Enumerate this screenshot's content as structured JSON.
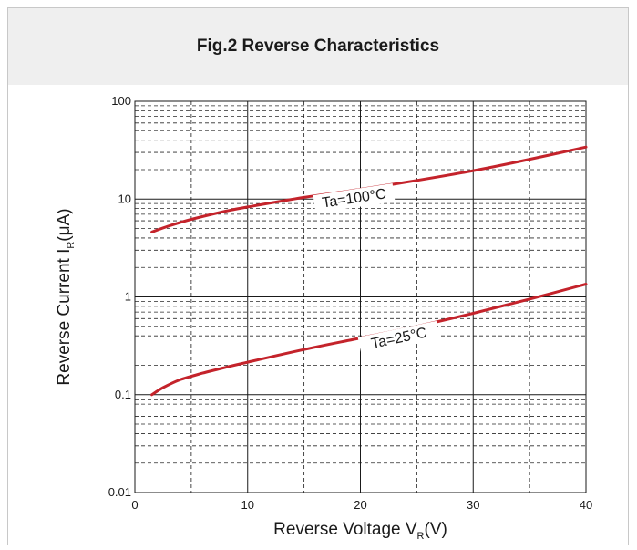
{
  "chart_data": {
    "type": "line",
    "title": "Fig.2 Reverse Characteristics",
    "xlabel": {
      "main": "Reverse Voltage V",
      "sub": "R",
      "unit": "(V)"
    },
    "ylabel": {
      "main": "Reverse Current  I",
      "sub": "R",
      "unit": "(μA)"
    },
    "xlim": [
      0,
      40
    ],
    "ylim": [
      0.01,
      100
    ],
    "yscale": "log",
    "x_ticks": [
      0,
      10,
      20,
      30,
      40
    ],
    "y_ticks": [
      {
        "value": 0.01,
        "label": "0.01"
      },
      {
        "value": 0.1,
        "label": "0.1"
      },
      {
        "value": 1,
        "label": "1"
      },
      {
        "value": 10,
        "label": "10"
      },
      {
        "value": 100,
        "label": "100"
      }
    ],
    "grid": true,
    "line_color": "#c4232b",
    "series": [
      {
        "name": "Ta=100°C",
        "x": [
          1.5,
          3,
          5,
          8,
          10,
          15,
          20,
          25,
          30,
          35,
          40
        ],
        "y": [
          4.6,
          5.3,
          6.2,
          7.5,
          8.3,
          10.4,
          12.6,
          15.5,
          19.5,
          25.5,
          34
        ]
      },
      {
        "name": "Ta=25°C",
        "x": [
          1.5,
          2.5,
          4,
          6,
          8,
          10,
          15,
          20,
          25,
          30,
          35,
          40
        ],
        "y": [
          0.1,
          0.118,
          0.142,
          0.166,
          0.19,
          0.215,
          0.29,
          0.38,
          0.5,
          0.68,
          0.95,
          1.35
        ]
      }
    ]
  }
}
